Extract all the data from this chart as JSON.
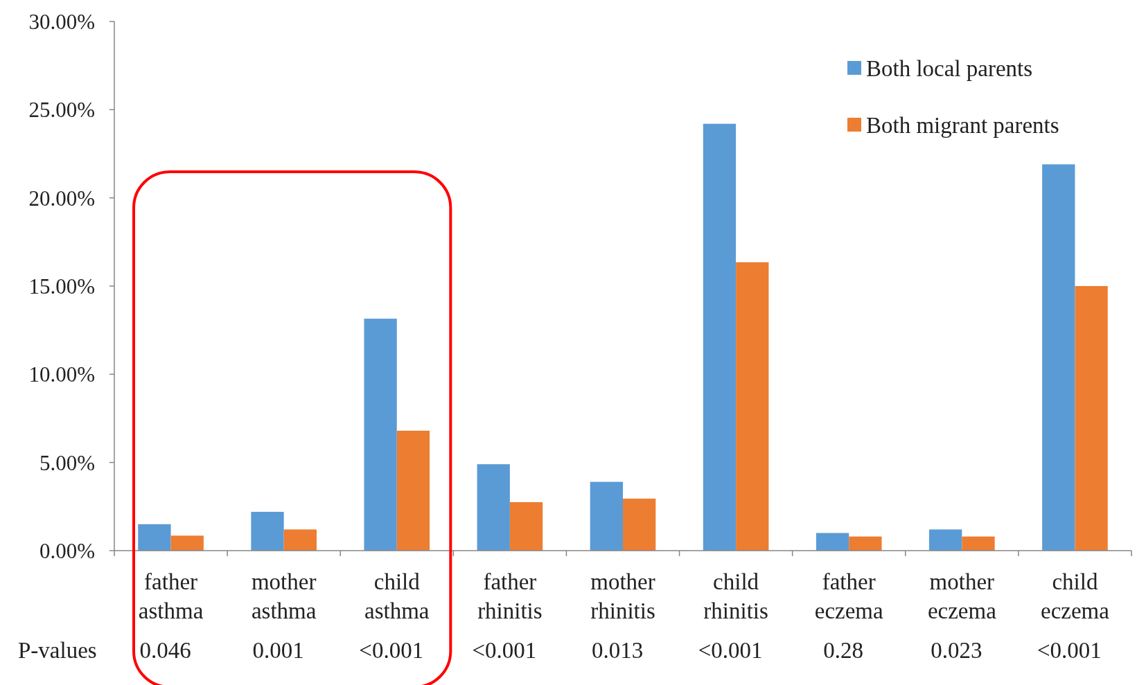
{
  "chart_data": {
    "type": "bar",
    "categories": [
      "father asthma",
      "mother asthma",
      "child asthma",
      "father rhinitis",
      "mother rhinitis",
      "child rhinitis",
      "father eczema",
      "mother eczema",
      "child eczema"
    ],
    "series": [
      {
        "name": "Both local parents",
        "color": "#5b9bd5",
        "values": [
          1.5,
          2.2,
          13.15,
          4.9,
          3.9,
          24.2,
          1.0,
          1.2,
          21.9
        ]
      },
      {
        "name": "Both migrant parents",
        "color": "#ed7d31",
        "values": [
          0.85,
          1.2,
          6.8,
          2.75,
          2.95,
          16.35,
          0.8,
          0.8,
          15.0
        ]
      }
    ],
    "ylim": [
      0,
      30
    ],
    "yticks": [
      {
        "value": 0,
        "label": "0.00%"
      },
      {
        "value": 5,
        "label": "5.00%"
      },
      {
        "value": 10,
        "label": "10.00%"
      },
      {
        "value": 15,
        "label": "15.00%"
      },
      {
        "value": 20,
        "label": "20.00%"
      },
      {
        "value": 25,
        "label": "25.00%"
      },
      {
        "value": 30,
        "label": "30.00%"
      }
    ],
    "annotations": [
      "P-values",
      "0.046",
      "0.001",
      "<0.001",
      "<0.001",
      "0.013",
      "<0.001",
      "0.28",
      "0.023",
      "<0.001"
    ],
    "legend": "top right",
    "grid": false
  }
}
